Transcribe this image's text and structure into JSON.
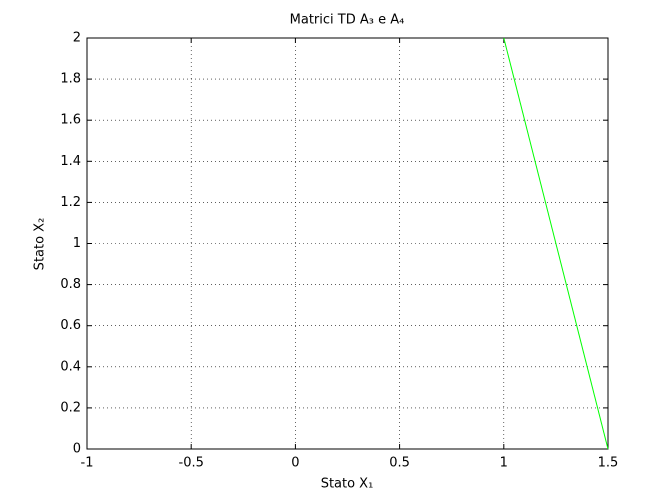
{
  "chart_data": {
    "type": "line",
    "title": "Matrici TD A₃ e A₄",
    "x_label": "Stato X₁",
    "y_label": "Stato X₂",
    "x": [
      1,
      1.5
    ],
    "series": [
      {
        "color": "#00ff00",
        "values": [
          2,
          0
        ]
      }
    ],
    "xlim": [
      -1,
      1.5
    ],
    "xticks": [
      -1,
      -0.5,
      0,
      0.5,
      1,
      1.5
    ],
    "ylim": [
      0,
      2
    ],
    "yticks": [
      0,
      0.2,
      0.4,
      0.6,
      0.8,
      1,
      1.2,
      1.4,
      1.6,
      1.8,
      2
    ],
    "grid": true
  }
}
